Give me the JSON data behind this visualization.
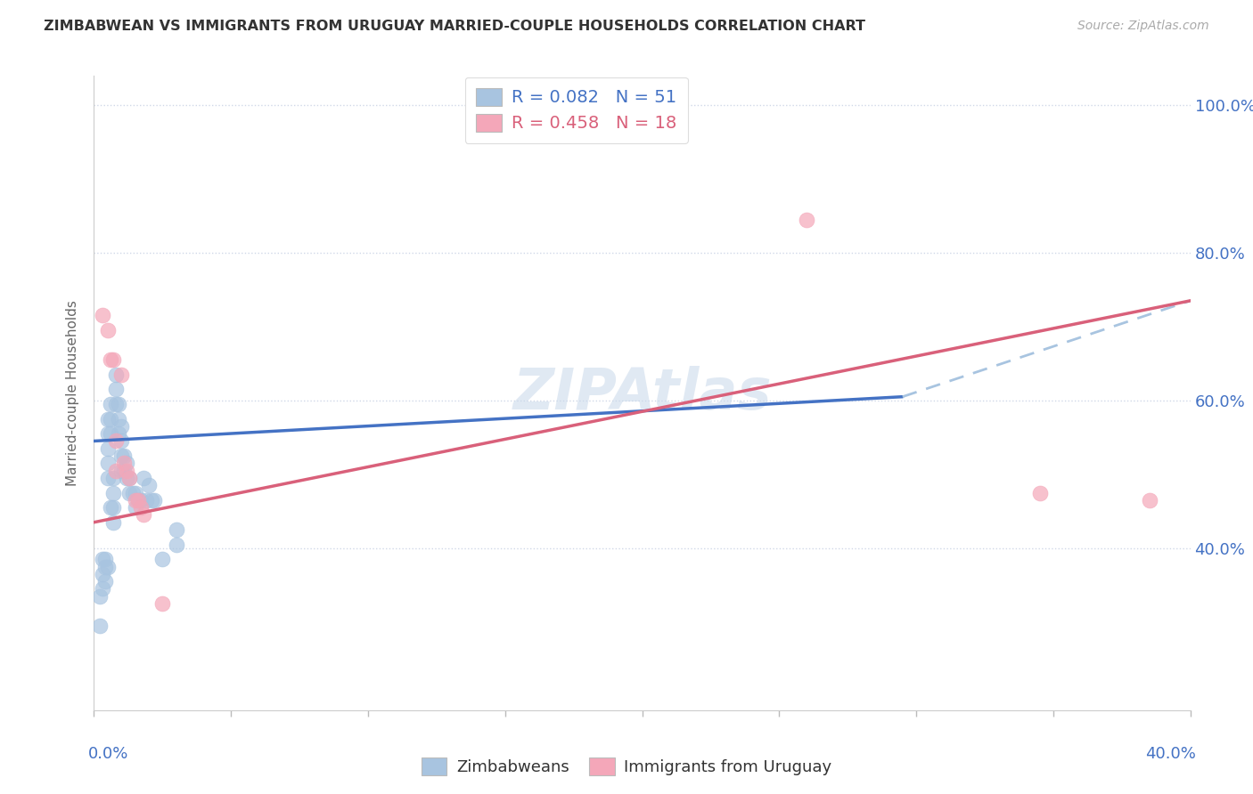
{
  "title": "ZIMBABWEAN VS IMMIGRANTS FROM URUGUAY MARRIED-COUPLE HOUSEHOLDS CORRELATION CHART",
  "source": "Source: ZipAtlas.com",
  "ylabel": "Married-couple Households",
  "xlim": [
    0.0,
    0.4
  ],
  "ylim": [
    0.18,
    1.04
  ],
  "legend_r1": "R = 0.082",
  "legend_n1": "N = 51",
  "legend_r2": "R = 0.458",
  "legend_n2": "N = 18",
  "blue_color": "#a8c4e0",
  "blue_line_color": "#4472c4",
  "pink_color": "#f4a7b9",
  "pink_line_color": "#d9607a",
  "dashed_line_color": "#a8c4e0",
  "watermark": "ZIPAtlas",
  "grid_color": "#d0d8e8",
  "right_yticks": [
    0.4,
    0.6,
    0.8,
    1.0
  ],
  "right_ytick_labels": [
    "40.0%",
    "60.0%",
    "80.0%",
    "100.0%"
  ],
  "blue_dots_x": [
    0.002,
    0.002,
    0.003,
    0.003,
    0.003,
    0.004,
    0.004,
    0.004,
    0.005,
    0.005,
    0.005,
    0.005,
    0.005,
    0.005,
    0.006,
    0.006,
    0.006,
    0.006,
    0.007,
    0.007,
    0.007,
    0.007,
    0.008,
    0.008,
    0.008,
    0.009,
    0.009,
    0.009,
    0.01,
    0.01,
    0.01,
    0.01,
    0.011,
    0.011,
    0.012,
    0.012,
    0.013,
    0.013,
    0.014,
    0.015,
    0.015,
    0.016,
    0.017,
    0.018,
    0.019,
    0.02,
    0.021,
    0.022,
    0.025,
    0.03,
    0.03
  ],
  "blue_dots_y": [
    0.335,
    0.295,
    0.385,
    0.365,
    0.345,
    0.385,
    0.375,
    0.355,
    0.575,
    0.555,
    0.535,
    0.515,
    0.495,
    0.375,
    0.595,
    0.575,
    0.555,
    0.455,
    0.495,
    0.475,
    0.455,
    0.435,
    0.635,
    0.615,
    0.595,
    0.595,
    0.575,
    0.555,
    0.565,
    0.545,
    0.525,
    0.505,
    0.525,
    0.505,
    0.515,
    0.495,
    0.495,
    0.475,
    0.475,
    0.475,
    0.455,
    0.465,
    0.465,
    0.495,
    0.465,
    0.485,
    0.465,
    0.465,
    0.385,
    0.425,
    0.405
  ],
  "pink_dots_x": [
    0.003,
    0.005,
    0.006,
    0.007,
    0.008,
    0.008,
    0.01,
    0.011,
    0.012,
    0.013,
    0.015,
    0.016,
    0.017,
    0.018,
    0.025,
    0.26,
    0.345,
    0.385
  ],
  "pink_dots_y": [
    0.715,
    0.695,
    0.655,
    0.655,
    0.545,
    0.505,
    0.635,
    0.515,
    0.505,
    0.495,
    0.465,
    0.465,
    0.455,
    0.445,
    0.325,
    0.845,
    0.475,
    0.465
  ],
  "blue_line_x": [
    0.0,
    0.295
  ],
  "blue_line_y": [
    0.545,
    0.605
  ],
  "dashed_line_x": [
    0.295,
    0.4
  ],
  "dashed_line_y": [
    0.605,
    0.735
  ],
  "pink_line_x": [
    0.0,
    0.4
  ],
  "pink_line_y": [
    0.435,
    0.735
  ]
}
